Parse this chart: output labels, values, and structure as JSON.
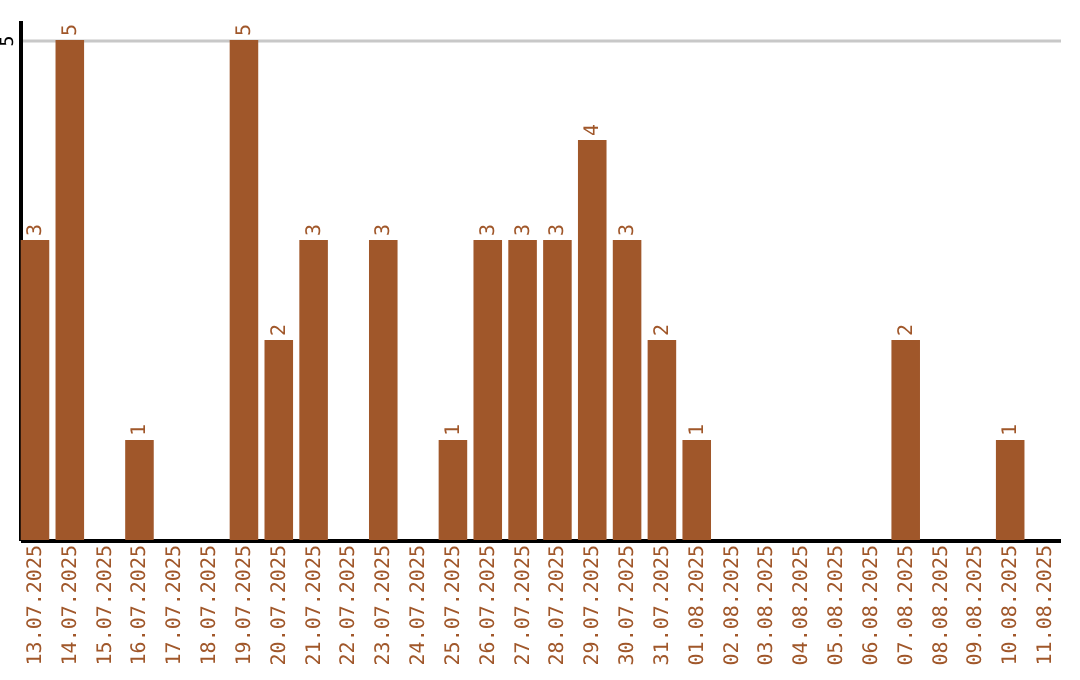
{
  "chart_data": {
    "type": "bar",
    "categories": [
      "13.07.2025",
      "14.07.2025",
      "15.07.2025",
      "16.07.2025",
      "17.07.2025",
      "18.07.2025",
      "19.07.2025",
      "20.07.2025",
      "21.07.2025",
      "22.07.2025",
      "23.07.2025",
      "24.07.2025",
      "25.07.2025",
      "26.07.2025",
      "27.07.2025",
      "28.07.2025",
      "29.07.2025",
      "30.07.2025",
      "31.07.2025",
      "01.08.2025",
      "02.08.2025",
      "03.08.2025",
      "04.08.2025",
      "05.08.2025",
      "06.08.2025",
      "07.08.2025",
      "08.08.2025",
      "09.08.2025",
      "10.08.2025",
      "11.08.2025"
    ],
    "values": [
      3,
      5,
      0,
      1,
      0,
      0,
      5,
      2,
      3,
      0,
      3,
      0,
      1,
      3,
      3,
      3,
      4,
      3,
      2,
      1,
      0,
      0,
      0,
      0,
      0,
      2,
      0,
      0,
      1,
      0
    ],
    "value_labels": [
      "3",
      "5",
      null,
      "1",
      null,
      null,
      "5",
      "2",
      "3",
      null,
      "3",
      null,
      "1",
      "3",
      "3",
      "3",
      "4",
      "3",
      "2",
      "1",
      null,
      null,
      null,
      null,
      null,
      "2",
      null,
      null,
      "1",
      null
    ],
    "color": "#a0572a",
    "ylim": [
      0,
      5.2
    ],
    "yticks": [
      5
    ],
    "grid": "y"
  }
}
